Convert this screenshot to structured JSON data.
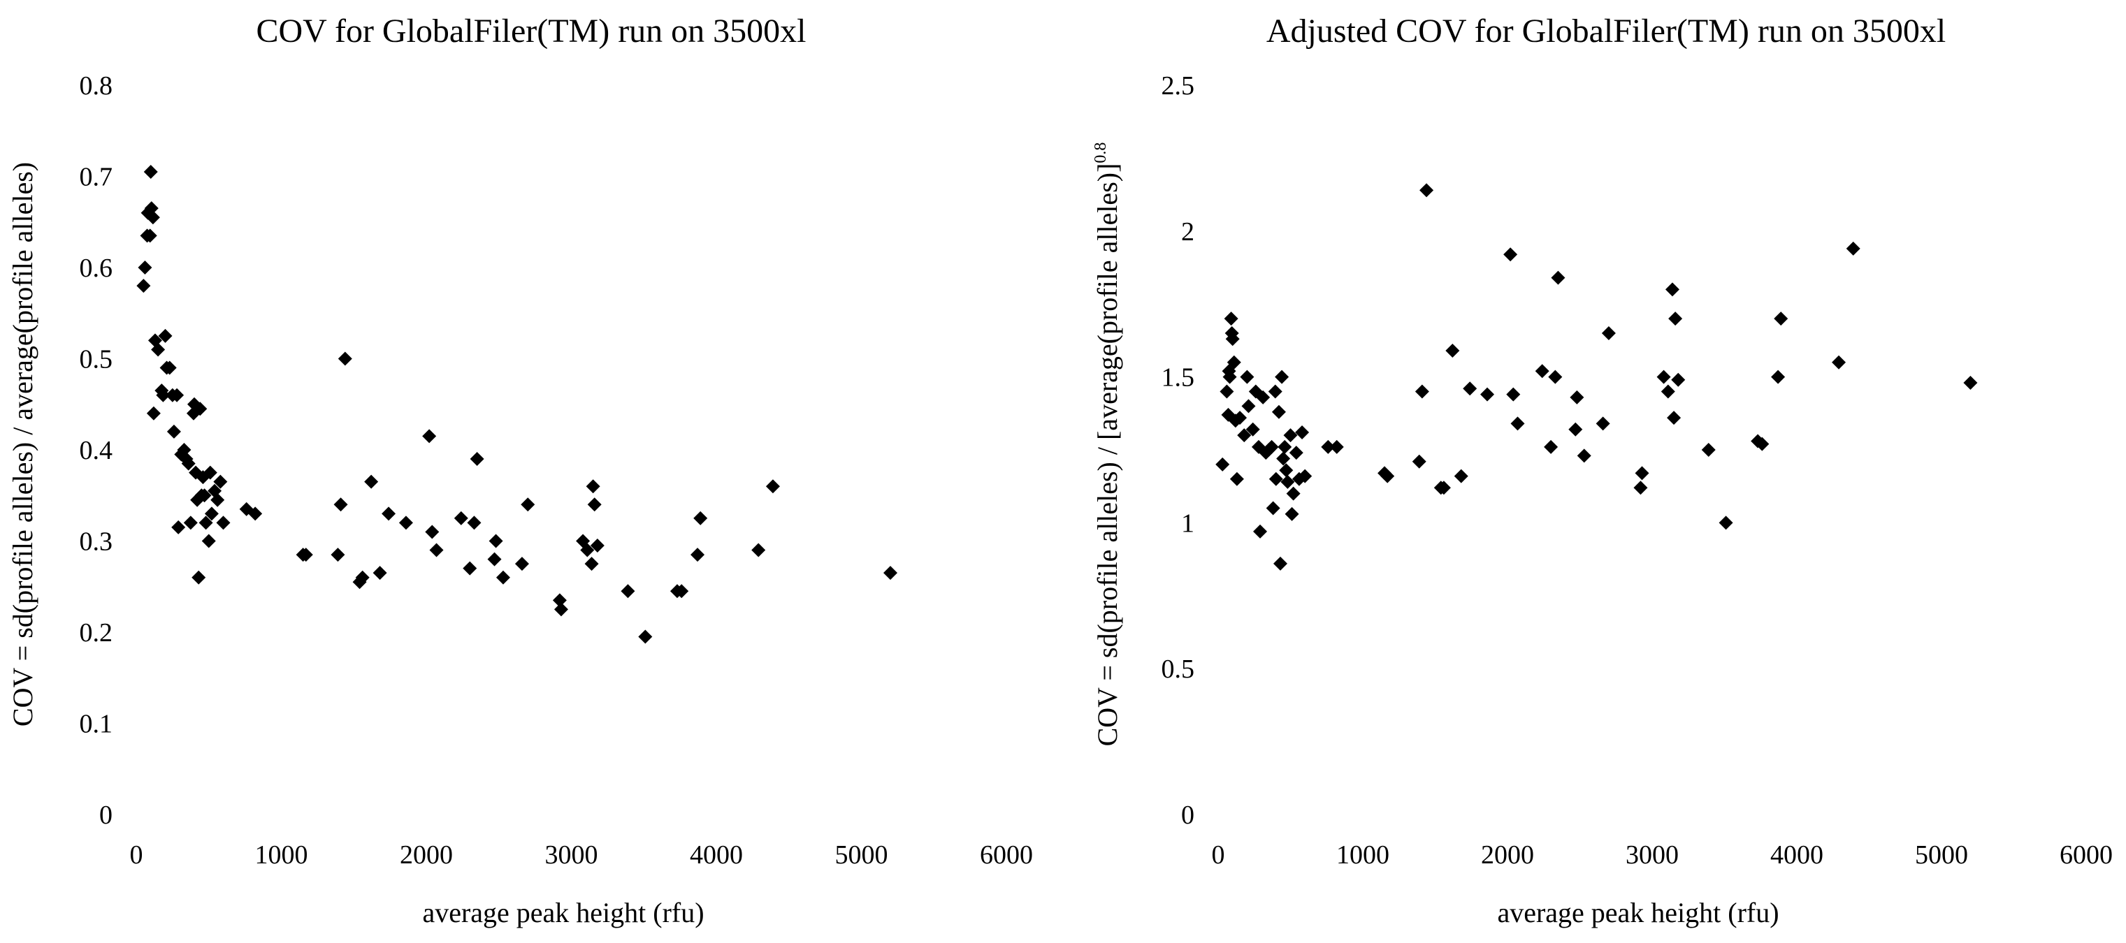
{
  "chart_data": [
    {
      "type": "scatter",
      "title": "COV for GlobalFiler(TM) run on 3500xl",
      "xlabel": "average peak height (rfu)",
      "ylabel": "COV = sd(profile alleles) / average(profile alleles)",
      "xlim": [
        0,
        6000
      ],
      "ylim": [
        0,
        0.8
      ],
      "x_ticks": [
        0,
        1000,
        2000,
        3000,
        4000,
        5000,
        6000
      ],
      "y_ticks": [
        0,
        0.1,
        0.2,
        0.3,
        0.4,
        0.5,
        0.6,
        0.7,
        0.8
      ],
      "x_tick_labels": [
        "0",
        "1000",
        "2000",
        "3000",
        "4000",
        "5000",
        "6000"
      ],
      "y_tick_labels": [
        "0",
        "0.1",
        "0.2",
        "0.3",
        "0.4",
        "0.5",
        "0.6",
        "0.7",
        "0.8"
      ],
      "marker": "diamond",
      "marker_color": "#000000",
      "grid": false,
      "series": [
        {
          "name": "COV",
          "points": [
            [
              50,
              0.58
            ],
            [
              60,
              0.6
            ],
            [
              75,
              0.635
            ],
            [
              80,
              0.66
            ],
            [
              95,
              0.635
            ],
            [
              100,
              0.705
            ],
            [
              105,
              0.665
            ],
            [
              115,
              0.655
            ],
            [
              120,
              0.44
            ],
            [
              130,
              0.52
            ],
            [
              150,
              0.51
            ],
            [
              175,
              0.465
            ],
            [
              185,
              0.46
            ],
            [
              200,
              0.525
            ],
            [
              210,
              0.49
            ],
            [
              230,
              0.49
            ],
            [
              250,
              0.46
            ],
            [
              260,
              0.42
            ],
            [
              280,
              0.46
            ],
            [
              290,
              0.315
            ],
            [
              310,
              0.395
            ],
            [
              330,
              0.4
            ],
            [
              345,
              0.39
            ],
            [
              360,
              0.385
            ],
            [
              375,
              0.32
            ],
            [
              395,
              0.44
            ],
            [
              400,
              0.45
            ],
            [
              410,
              0.375
            ],
            [
              420,
              0.345
            ],
            [
              430,
              0.26
            ],
            [
              440,
              0.445
            ],
            [
              450,
              0.35
            ],
            [
              460,
              0.37
            ],
            [
              470,
              0.35
            ],
            [
              480,
              0.32
            ],
            [
              500,
              0.3
            ],
            [
              510,
              0.375
            ],
            [
              520,
              0.33
            ],
            [
              540,
              0.355
            ],
            [
              560,
              0.345
            ],
            [
              580,
              0.365
            ],
            [
              600,
              0.32
            ],
            [
              760,
              0.335
            ],
            [
              820,
              0.33
            ],
            [
              1150,
              0.285
            ],
            [
              1170,
              0.285
            ],
            [
              1390,
              0.285
            ],
            [
              1410,
              0.34
            ],
            [
              1440,
              0.5
            ],
            [
              1540,
              0.255
            ],
            [
              1560,
              0.26
            ],
            [
              1620,
              0.365
            ],
            [
              1680,
              0.265
            ],
            [
              1740,
              0.33
            ],
            [
              1860,
              0.32
            ],
            [
              2020,
              0.415
            ],
            [
              2040,
              0.31
            ],
            [
              2070,
              0.29
            ],
            [
              2240,
              0.325
            ],
            [
              2300,
              0.27
            ],
            [
              2330,
              0.32
            ],
            [
              2350,
              0.39
            ],
            [
              2470,
              0.28
            ],
            [
              2480,
              0.3
            ],
            [
              2530,
              0.26
            ],
            [
              2660,
              0.275
            ],
            [
              2700,
              0.34
            ],
            [
              2920,
              0.235
            ],
            [
              2930,
              0.225
            ],
            [
              3080,
              0.3
            ],
            [
              3110,
              0.29
            ],
            [
              3140,
              0.275
            ],
            [
              3150,
              0.36
            ],
            [
              3160,
              0.34
            ],
            [
              3180,
              0.295
            ],
            [
              3390,
              0.245
            ],
            [
              3510,
              0.195
            ],
            [
              3730,
              0.245
            ],
            [
              3760,
              0.245
            ],
            [
              3870,
              0.285
            ],
            [
              3890,
              0.325
            ],
            [
              4290,
              0.29
            ],
            [
              4390,
              0.36
            ],
            [
              5200,
              0.265
            ]
          ]
        }
      ]
    },
    {
      "type": "scatter",
      "title": "Adjusted COV for GlobalFiler(TM) run on 3500xl",
      "xlabel": "average peak height (rfu)",
      "ylabel": "COV = sd(profile alleles) / [average(profile alleles)]",
      "ylabel_superscript": "0.8",
      "xlim": [
        0,
        6000
      ],
      "ylim": [
        0,
        2.5
      ],
      "x_ticks": [
        0,
        1000,
        2000,
        3000,
        4000,
        5000,
        6000
      ],
      "y_ticks": [
        0,
        0.5,
        1,
        1.5,
        2,
        2.5
      ],
      "x_tick_labels": [
        "0",
        "1000",
        "2000",
        "3000",
        "4000",
        "5000",
        "6000"
      ],
      "y_tick_labels": [
        "0",
        "0.5",
        "1",
        "1.5",
        "2",
        "2.5"
      ],
      "marker": "diamond",
      "marker_color": "#000000",
      "grid": false,
      "series": [
        {
          "name": "Adjusted COV",
          "points": [
            [
              30,
              1.2
            ],
            [
              60,
              1.45
            ],
            [
              70,
              1.37
            ],
            [
              75,
              1.52
            ],
            [
              80,
              1.5
            ],
            [
              90,
              1.7
            ],
            [
              95,
              1.65
            ],
            [
              100,
              1.63
            ],
            [
              110,
              1.55
            ],
            [
              120,
              1.35
            ],
            [
              130,
              1.15
            ],
            [
              150,
              1.36
            ],
            [
              180,
              1.3
            ],
            [
              200,
              1.5
            ],
            [
              210,
              1.4
            ],
            [
              240,
              1.32
            ],
            [
              260,
              1.45
            ],
            [
              280,
              1.26
            ],
            [
              290,
              0.97
            ],
            [
              310,
              1.43
            ],
            [
              330,
              1.24
            ],
            [
              350,
              1.25
            ],
            [
              370,
              1.26
            ],
            [
              380,
              1.05
            ],
            [
              395,
              1.45
            ],
            [
              400,
              1.15
            ],
            [
              420,
              1.38
            ],
            [
              430,
              0.86
            ],
            [
              440,
              1.5
            ],
            [
              450,
              1.22
            ],
            [
              460,
              1.26
            ],
            [
              470,
              1.18
            ],
            [
              480,
              1.14
            ],
            [
              500,
              1.3
            ],
            [
              510,
              1.03
            ],
            [
              520,
              1.1
            ],
            [
              540,
              1.24
            ],
            [
              560,
              1.15
            ],
            [
              580,
              1.31
            ],
            [
              600,
              1.16
            ],
            [
              760,
              1.26
            ],
            [
              820,
              1.26
            ],
            [
              1150,
              1.17
            ],
            [
              1170,
              1.16
            ],
            [
              1390,
              1.21
            ],
            [
              1410,
              1.45
            ],
            [
              1440,
              2.14
            ],
            [
              1540,
              1.12
            ],
            [
              1560,
              1.12
            ],
            [
              1620,
              1.59
            ],
            [
              1680,
              1.16
            ],
            [
              1740,
              1.46
            ],
            [
              1860,
              1.44
            ],
            [
              2020,
              1.92
            ],
            [
              2040,
              1.44
            ],
            [
              2070,
              1.34
            ],
            [
              2240,
              1.52
            ],
            [
              2300,
              1.26
            ],
            [
              2330,
              1.5
            ],
            [
              2350,
              1.84
            ],
            [
              2470,
              1.32
            ],
            [
              2480,
              1.43
            ],
            [
              2530,
              1.23
            ],
            [
              2660,
              1.34
            ],
            [
              2700,
              1.65
            ],
            [
              2920,
              1.12
            ],
            [
              2930,
              1.17
            ],
            [
              3080,
              1.5
            ],
            [
              3110,
              1.45
            ],
            [
              3140,
              1.8
            ],
            [
              3150,
              1.36
            ],
            [
              3160,
              1.7
            ],
            [
              3180,
              1.49
            ],
            [
              3390,
              1.25
            ],
            [
              3510,
              1.0
            ],
            [
              3730,
              1.28
            ],
            [
              3760,
              1.27
            ],
            [
              3870,
              1.5
            ],
            [
              3890,
              1.7
            ],
            [
              4290,
              1.55
            ],
            [
              4390,
              1.94
            ],
            [
              5200,
              1.48
            ]
          ]
        }
      ]
    }
  ]
}
